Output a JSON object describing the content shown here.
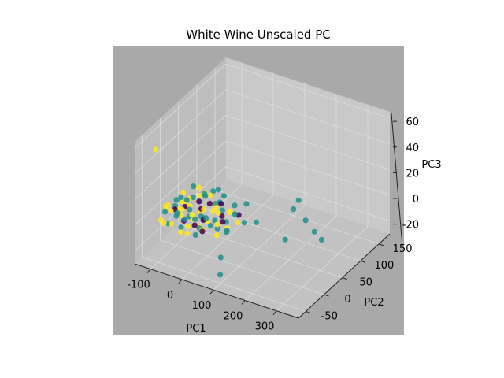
{
  "chart_data": {
    "type": "scatter",
    "title": "White Wine Unscaled PC",
    "xlabel": "PC1",
    "ylabel": "PC2",
    "zlabel": "PC3",
    "xlim": [
      -150,
      370
    ],
    "ylim": [
      -70,
      180
    ],
    "zlim": [
      -30,
      65
    ],
    "xticks": [
      "-100",
      "0",
      "100",
      "200",
      "300"
    ],
    "yticks": [
      "-50",
      "0",
      "50",
      "100",
      "150"
    ],
    "zticks": [
      "-20",
      "0",
      "20",
      "40",
      "60"
    ],
    "grid": true,
    "colors": {
      "figure_bg": "#ffffff",
      "axes_bg": "#a9a9a9",
      "pane": "#c9c9c9",
      "grid": "#dcdcdc",
      "class_low": "#440154",
      "class_mid": "#21918c",
      "class_high": "#fde725"
    },
    "series": [
      {
        "color": "#fde725",
        "points": [
          [
            -110,
            -20,
            5
          ],
          [
            -95,
            -30,
            8
          ],
          [
            -80,
            -10,
            3
          ],
          [
            -70,
            -40,
            10
          ],
          [
            -60,
            -20,
            2
          ],
          [
            -50,
            -5,
            6
          ],
          [
            -40,
            -35,
            12
          ],
          [
            -30,
            -15,
            0
          ],
          [
            -20,
            -25,
            7
          ],
          [
            -10,
            -45,
            4
          ],
          [
            0,
            -10,
            9
          ],
          [
            10,
            -30,
            1
          ],
          [
            20,
            -20,
            5
          ],
          [
            30,
            -40,
            3
          ],
          [
            40,
            -5,
            8
          ],
          [
            -100,
            20,
            6
          ],
          [
            -90,
            10,
            2
          ],
          [
            -60,
            30,
            4
          ],
          [
            -20,
            25,
            9
          ],
          [
            -80,
            45,
            5
          ],
          [
            -40,
            15,
            -3
          ],
          [
            60,
            -25,
            6
          ],
          [
            80,
            -15,
            2
          ],
          [
            -120,
            -5,
            1
          ],
          [
            -75,
            -55,
            4
          ],
          [
            0,
            -55,
            2
          ],
          [
            30,
            -10,
            10
          ],
          [
            -45,
            -60,
            7
          ],
          [
            50,
            20,
            3
          ],
          [
            70,
            -35,
            1
          ],
          [
            -55,
            40,
            4
          ],
          [
            -95,
            -45,
            2
          ],
          [
            15,
            10,
            6
          ],
          [
            -15,
            -60,
            3
          ],
          [
            -25,
            40,
            -2
          ],
          [
            -65,
            5,
            8
          ],
          [
            35,
            30,
            -1
          ],
          [
            -105,
            30,
            -4
          ],
          [
            90,
            5,
            2
          ],
          [
            -5,
            5,
            -5
          ],
          [
            -130,
            -30,
            50
          ]
        ]
      },
      {
        "color": "#21918c",
        "points": [
          [
            -100,
            -30,
            4
          ],
          [
            -85,
            -15,
            6
          ],
          [
            -70,
            -25,
            2
          ],
          [
            -55,
            -35,
            8
          ],
          [
            -45,
            -10,
            5
          ],
          [
            -35,
            -20,
            3
          ],
          [
            -25,
            -40,
            7
          ],
          [
            -15,
            -5,
            1
          ],
          [
            -5,
            -30,
            6
          ],
          [
            5,
            -15,
            4
          ],
          [
            15,
            -35,
            2
          ],
          [
            25,
            -25,
            8
          ],
          [
            35,
            -10,
            3
          ],
          [
            45,
            -30,
            5
          ],
          [
            55,
            -20,
            1
          ],
          [
            -90,
            5,
            7
          ],
          [
            -75,
            25,
            3
          ],
          [
            -50,
            35,
            5
          ],
          [
            -30,
            20,
            9
          ],
          [
            -10,
            30,
            2
          ],
          [
            10,
            25,
            6
          ],
          [
            30,
            15,
            4
          ],
          [
            -65,
            -50,
            3
          ],
          [
            -20,
            -55,
            5
          ],
          [
            20,
            -50,
            1
          ],
          [
            -110,
            10,
            2
          ],
          [
            -85,
            35,
            8
          ],
          [
            -40,
            50,
            4
          ],
          [
            65,
            -5,
            3
          ],
          [
            75,
            10,
            6
          ],
          [
            85,
            -20,
            2
          ],
          [
            100,
            15,
            0
          ],
          [
            120,
            30,
            -2
          ],
          [
            -60,
            -5,
            10
          ],
          [
            0,
            45,
            5
          ],
          [
            40,
            40,
            2
          ],
          [
            -35,
            60,
            3
          ],
          [
            60,
            55,
            1
          ],
          [
            -115,
            -15,
            3
          ],
          [
            95,
            -30,
            4
          ],
          [
            180,
            80,
            0
          ],
          [
            230,
            70,
            -2
          ],
          [
            270,
            60,
            -5
          ],
          [
            270,
            -20,
            10
          ],
          [
            100,
            -50,
            -10
          ],
          [
            110,
            -60,
            -20
          ],
          [
            150,
            120,
            -6
          ],
          [
            310,
            45,
            -4
          ]
        ]
      },
      {
        "color": "#440154",
        "points": [
          [
            -60,
            -10,
            6
          ],
          [
            -20,
            0,
            5
          ],
          [
            10,
            -20,
            4
          ],
          [
            40,
            5,
            3
          ],
          [
            -40,
            -30,
            2
          ],
          [
            20,
            20,
            7
          ],
          [
            -80,
            -20,
            5
          ],
          [
            0,
            -35,
            3
          ],
          [
            60,
            -10,
            4
          ],
          [
            -10,
            15,
            6
          ],
          [
            30,
            -40,
            2
          ],
          [
            -50,
            20,
            3
          ],
          [
            70,
            25,
            1
          ]
        ]
      }
    ]
  }
}
